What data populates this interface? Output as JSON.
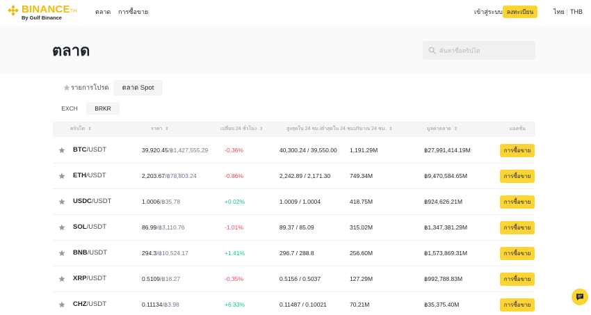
{
  "nav": {
    "logo_text": "BINANCE",
    "logo_suffix": "TH",
    "logo_sub": "By Gulf Binance",
    "links": [
      "ตลาด",
      "การซื้อขาย"
    ],
    "login": "เข้าสู่ระบบ",
    "register": "ลงทะเบียน",
    "language": "ไทย",
    "currency": "THB"
  },
  "header": {
    "title": "ตลาด",
    "search_placeholder": "ค้นหาชื่อคริปโต"
  },
  "tabs": {
    "favorites": "รายการโปรด",
    "spot": "ตลาด Spot"
  },
  "subtabs": {
    "exch": "EXCH",
    "brkr": "BRKR"
  },
  "table": {
    "headers": {
      "crypto": "คริปโต",
      "price": "ราคา",
      "change": "เปลี่ยน 24 ชั่วโมง",
      "high_low": "สูงสุดใน 24 ชม./ต่ำสุดใน 24 ชม.",
      "volume": "ปริมาณ 24 ชม.",
      "market_cap": "มูลค่าตลาด",
      "action": "แอคชั่น"
    },
    "trade_label": "การซื้อขาย",
    "rows": [
      {
        "base": "BTC",
        "quote": "/USDT",
        "price": "39,920.45",
        "price_thb": "/฿1,427,555.29",
        "change": "-0.36%",
        "dir": "down",
        "high_low": "40,300.24 / 39,550.00",
        "volume": "1,191.29M",
        "mcap": "฿27,991,414.19M"
      },
      {
        "base": "ETH",
        "quote": "/USDT",
        "price": "2,203.67",
        "price_thb": "/฿78,803.24",
        "change": "-0.86%",
        "dir": "down",
        "high_low": "2,242.89 / 2,171.30",
        "volume": "749.34M",
        "mcap": "฿9,470,584.65M"
      },
      {
        "base": "USDC",
        "quote": "/USDT",
        "price": "1.0006",
        "price_thb": "/฿35.78",
        "change": "+0.02%",
        "dir": "up",
        "high_low": "1.0009 / 1.0004",
        "volume": "418.75M",
        "mcap": "฿924,626.21M"
      },
      {
        "base": "SOL",
        "quote": "/USDT",
        "price": "86.99",
        "price_thb": "/฿3,110.76",
        "change": "-1.01%",
        "dir": "down",
        "high_low": "89.37 / 85.09",
        "volume": "315.02M",
        "mcap": "฿1,347,381.29M"
      },
      {
        "base": "BNB",
        "quote": "/USDT",
        "price": "294.3",
        "price_thb": "/฿10,524.17",
        "change": "+1.41%",
        "dir": "up",
        "high_low": "296.7 / 288.8",
        "volume": "256.60M",
        "mcap": "฿1,573,869.31M"
      },
      {
        "base": "XRP",
        "quote": "/USDT",
        "price": "0.5109",
        "price_thb": "/฿18.27",
        "change": "-0.35%",
        "dir": "down",
        "high_low": "0.5156 / 0.5037",
        "volume": "127.29M",
        "mcap": "฿992,788.83M"
      },
      {
        "base": "CHZ",
        "quote": "/USDT",
        "price": "0.11134",
        "price_thb": "/฿3.98",
        "change": "+6.33%",
        "dir": "up",
        "high_low": "0.11487 / 0.10021",
        "volume": "70.21M",
        "mcap": "฿35,375.40M"
      }
    ]
  },
  "colors": {
    "brand": "#f0b90b",
    "button": "#fcd535",
    "up": "#0ecb81",
    "down": "#f6465d"
  }
}
